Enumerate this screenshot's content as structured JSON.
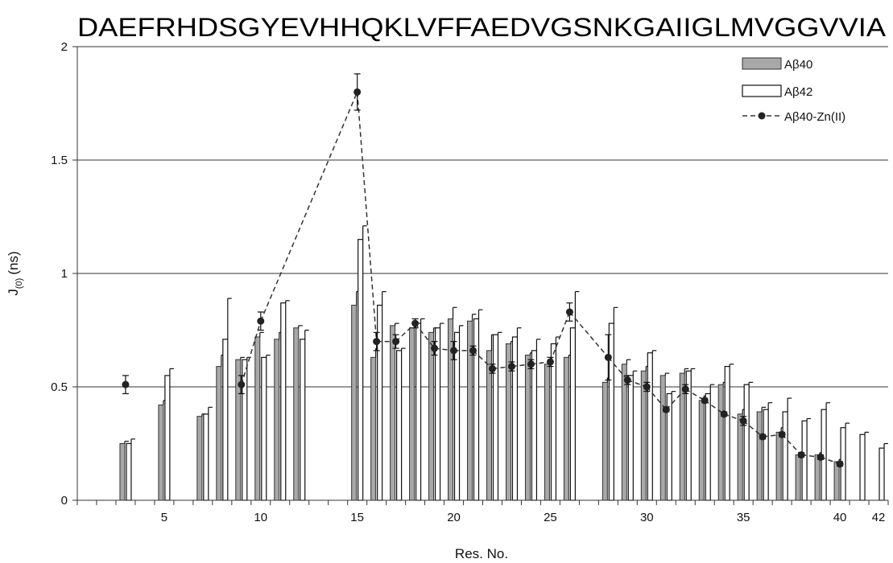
{
  "chart_data": {
    "type": "bar",
    "sequence": "DAEFRHDSGYEVHHQKLVFFAEDVGSNKGAIIGLMVGGVVIA",
    "xlabel": "Res. No.",
    "ylabel_main": "J",
    "ylabel_sub": "(0)",
    "ylabel_unit": "(ns)",
    "ylim": [
      0,
      2
    ],
    "yticks": [
      "0",
      "0.5",
      "1",
      "1.5",
      "2"
    ],
    "xticks": [
      "5",
      "10",
      "15",
      "20",
      "25",
      "30",
      "35",
      "40",
      "42"
    ],
    "grid": "horizontal",
    "legend_position": "top-right",
    "series": [
      {
        "name": "Aβ40",
        "style": "gray-bar",
        "color": "#a8a8a8",
        "points": [
          {
            "x": 3,
            "y": 0.25,
            "err": 0.01
          },
          {
            "x": 5,
            "y": 0.42,
            "err": 0.02
          },
          {
            "x": 7,
            "y": 0.37,
            "err": 0.01
          },
          {
            "x": 8,
            "y": 0.59,
            "err": 0.05
          },
          {
            "x": 9,
            "y": 0.62,
            "err": 0.01
          },
          {
            "x": 10,
            "y": 0.72,
            "err": 0.02
          },
          {
            "x": 11,
            "y": 0.71,
            "err": 0.03
          },
          {
            "x": 12,
            "y": 0.76,
            "err": 0.01
          },
          {
            "x": 15,
            "y": 0.86,
            "err": 0.06
          },
          {
            "x": 16,
            "y": 0.63,
            "err": 0.04
          },
          {
            "x": 17,
            "y": 0.77,
            "err": 0.01
          },
          {
            "x": 18,
            "y": 0.76,
            "err": 0.02
          },
          {
            "x": 19,
            "y": 0.74,
            "err": 0.02
          },
          {
            "x": 20,
            "y": 0.8,
            "err": 0.05
          },
          {
            "x": 21,
            "y": 0.79,
            "err": 0.03
          },
          {
            "x": 22,
            "y": 0.66,
            "err": 0.07
          },
          {
            "x": 23,
            "y": 0.69,
            "err": 0.01
          },
          {
            "x": 24,
            "y": 0.64,
            "err": 0.01
          },
          {
            "x": 25,
            "y": 0.6,
            "err": 0.02
          },
          {
            "x": 26,
            "y": 0.63,
            "err": 0.01
          },
          {
            "x": 28,
            "y": 0.52,
            "err": 0.02
          },
          {
            "x": 29,
            "y": 0.6,
            "err": 0.02
          },
          {
            "x": 30,
            "y": 0.57,
            "err": 0.02
          },
          {
            "x": 31,
            "y": 0.55,
            "err": 0.01
          },
          {
            "x": 32,
            "y": 0.56,
            "err": 0.02
          },
          {
            "x": 33,
            "y": 0.44,
            "err": 0.02
          },
          {
            "x": 34,
            "y": 0.51,
            "err": 0.01
          },
          {
            "x": 35,
            "y": 0.38,
            "err": 0.02
          },
          {
            "x": 36,
            "y": 0.39,
            "err": 0.02
          },
          {
            "x": 37,
            "y": 0.3,
            "err": 0.02
          },
          {
            "x": 38,
            "y": 0.2,
            "err": 0.01
          },
          {
            "x": 39,
            "y": 0.2,
            "err": 0.01
          },
          {
            "x": 40,
            "y": 0.17,
            "err": 0.01
          }
        ]
      },
      {
        "name": "Aβ42",
        "style": "white-bar",
        "color": "#ffffff",
        "points": [
          {
            "x": 3,
            "y": 0.25,
            "err": 0.02
          },
          {
            "x": 5,
            "y": 0.55,
            "err": 0.03
          },
          {
            "x": 7,
            "y": 0.38,
            "err": 0.03
          },
          {
            "x": 8,
            "y": 0.71,
            "err": 0.18
          },
          {
            "x": 9,
            "y": 0.62,
            "err": 0.01
          },
          {
            "x": 10,
            "y": 0.63,
            "err": 0.01
          },
          {
            "x": 11,
            "y": 0.87,
            "err": 0.01
          },
          {
            "x": 12,
            "y": 0.71,
            "err": 0.04
          },
          {
            "x": 15,
            "y": 1.15,
            "err": 0.06
          },
          {
            "x": 16,
            "y": 0.86,
            "err": 0.06
          },
          {
            "x": 17,
            "y": 0.66,
            "err": 0.01
          },
          {
            "x": 18,
            "y": 0.78,
            "err": 0.02
          },
          {
            "x": 19,
            "y": 0.76,
            "err": 0.02
          },
          {
            "x": 20,
            "y": 0.74,
            "err": 0.03
          },
          {
            "x": 21,
            "y": 0.8,
            "err": 0.04
          },
          {
            "x": 22,
            "y": 0.73,
            "err": 0.01
          },
          {
            "x": 23,
            "y": 0.72,
            "err": 0.04
          },
          {
            "x": 24,
            "y": 0.66,
            "err": 0.05
          },
          {
            "x": 25,
            "y": 0.69,
            "err": 0.03
          },
          {
            "x": 26,
            "y": 0.76,
            "err": 0.16
          },
          {
            "x": 28,
            "y": 0.78,
            "err": 0.07
          },
          {
            "x": 29,
            "y": 0.55,
            "err": 0.02
          },
          {
            "x": 30,
            "y": 0.65,
            "err": 0.01
          },
          {
            "x": 31,
            "y": 0.47,
            "err": 0.01
          },
          {
            "x": 32,
            "y": 0.57,
            "err": 0.01
          },
          {
            "x": 33,
            "y": 0.47,
            "err": 0.04
          },
          {
            "x": 34,
            "y": 0.59,
            "err": 0.01
          },
          {
            "x": 35,
            "y": 0.51,
            "err": 0.01
          },
          {
            "x": 36,
            "y": 0.4,
            "err": 0.03
          },
          {
            "x": 37,
            "y": 0.39,
            "err": 0.06
          },
          {
            "x": 38,
            "y": 0.35,
            "err": 0.01
          },
          {
            "x": 39,
            "y": 0.4,
            "err": 0.03
          },
          {
            "x": 40,
            "y": 0.32,
            "err": 0.02
          },
          {
            "x": 41,
            "y": 0.29,
            "err": 0.01
          },
          {
            "x": 42,
            "y": 0.23,
            "err": 0.02
          }
        ]
      },
      {
        "name": "Aβ40-Zn(II)",
        "style": "dashed-line-with-markers",
        "color": "#333333",
        "points": [
          {
            "x": 3,
            "y": 0.51,
            "err": 0.04
          },
          {
            "x": 9,
            "y": 0.51,
            "err": 0.04
          },
          {
            "x": 10,
            "y": 0.79,
            "err": 0.04
          },
          {
            "x": 15,
            "y": 1.8,
            "err": 0.08
          },
          {
            "x": 16,
            "y": 0.7,
            "err": 0.04
          },
          {
            "x": 17,
            "y": 0.7,
            "err": 0.03
          },
          {
            "x": 18,
            "y": 0.78,
            "err": 0.02
          },
          {
            "x": 19,
            "y": 0.67,
            "err": 0.03
          },
          {
            "x": 20,
            "y": 0.66,
            "err": 0.04
          },
          {
            "x": 21,
            "y": 0.66,
            "err": 0.02
          },
          {
            "x": 22,
            "y": 0.58,
            "err": 0.02
          },
          {
            "x": 23,
            "y": 0.59,
            "err": 0.02
          },
          {
            "x": 24,
            "y": 0.6,
            "err": 0.02
          },
          {
            "x": 25,
            "y": 0.61,
            "err": 0.02
          },
          {
            "x": 26,
            "y": 0.83,
            "err": 0.04
          },
          {
            "x": 28,
            "y": 0.63,
            "err": 0.1
          },
          {
            "x": 29,
            "y": 0.53,
            "err": 0.02
          },
          {
            "x": 30,
            "y": 0.5,
            "err": 0.02
          },
          {
            "x": 31,
            "y": 0.4,
            "err": 0.01
          },
          {
            "x": 32,
            "y": 0.49,
            "err": 0.02
          },
          {
            "x": 33,
            "y": 0.44,
            "err": 0.01
          },
          {
            "x": 34,
            "y": 0.38,
            "err": 0.01
          },
          {
            "x": 35,
            "y": 0.35,
            "err": 0.02
          },
          {
            "x": 36,
            "y": 0.28,
            "err": 0.01
          },
          {
            "x": 37,
            "y": 0.29,
            "err": 0.01
          },
          {
            "x": 38,
            "y": 0.2,
            "err": 0.01
          },
          {
            "x": 39,
            "y": 0.19,
            "err": 0.01
          },
          {
            "x": 40,
            "y": 0.16,
            "err": 0.01
          }
        ]
      }
    ]
  }
}
